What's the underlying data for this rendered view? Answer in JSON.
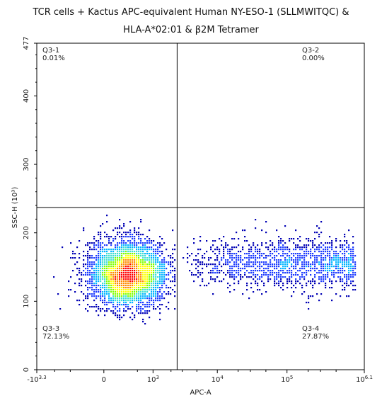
{
  "chart_data": {
    "type": "scatter",
    "title_line1": "TCR cells + Kactus APC-equivalent Human NY-ESO-1 (SLLMWITQC) &",
    "title_line2": "HLA-A*02:01 & β2M Tetramer",
    "xlabel": "APC-A",
    "ylabel": "SSC-H (10³)",
    "x_scale": "biexponential",
    "y_range": [
      0,
      477
    ],
    "x_ticks": [
      {
        "label": "-10",
        "sup": "3.3",
        "value": -1995
      },
      {
        "label": "0",
        "sup": "",
        "value": 0
      },
      {
        "label": "10",
        "sup": "3",
        "value": 1000
      },
      {
        "label": "10",
        "sup": "4",
        "value": 10000
      },
      {
        "label": "10",
        "sup": "5",
        "value": 100000
      },
      {
        "label": "10",
        "sup": "6.1",
        "value": 1258925
      }
    ],
    "y_ticks": [
      {
        "label": "0",
        "value": 0
      },
      {
        "label": "100",
        "value": 100
      },
      {
        "label": "200",
        "value": 200
      },
      {
        "label": "300",
        "value": 300
      },
      {
        "label": "400",
        "value": 400
      },
      {
        "label": "477",
        "value": 477
      }
    ],
    "quadrant_gate": {
      "x_threshold": 2500,
      "y_threshold": 237
    },
    "quadrants": [
      {
        "name": "Q3-1",
        "percent": "0.01%",
        "position": "top-left"
      },
      {
        "name": "Q3-2",
        "percent": "0.00%",
        "position": "top-right"
      },
      {
        "name": "Q3-3",
        "percent": "72.13%",
        "position": "bottom-left"
      },
      {
        "name": "Q3-4",
        "percent": "27.87%",
        "position": "bottom-right"
      }
    ],
    "populations": [
      {
        "name": "APC-negative",
        "x_center": 300,
        "y_center": 140,
        "fraction": 0.7213
      },
      {
        "name": "APC-positive",
        "x_center": 50000,
        "y_center": 155,
        "fraction": 0.2787
      }
    ],
    "density_colors": [
      "#0000b4",
      "#1e3cff",
      "#00b4ff",
      "#40e0d0",
      "#7fff00",
      "#ffff00",
      "#ff8c00",
      "#ff0000"
    ]
  }
}
